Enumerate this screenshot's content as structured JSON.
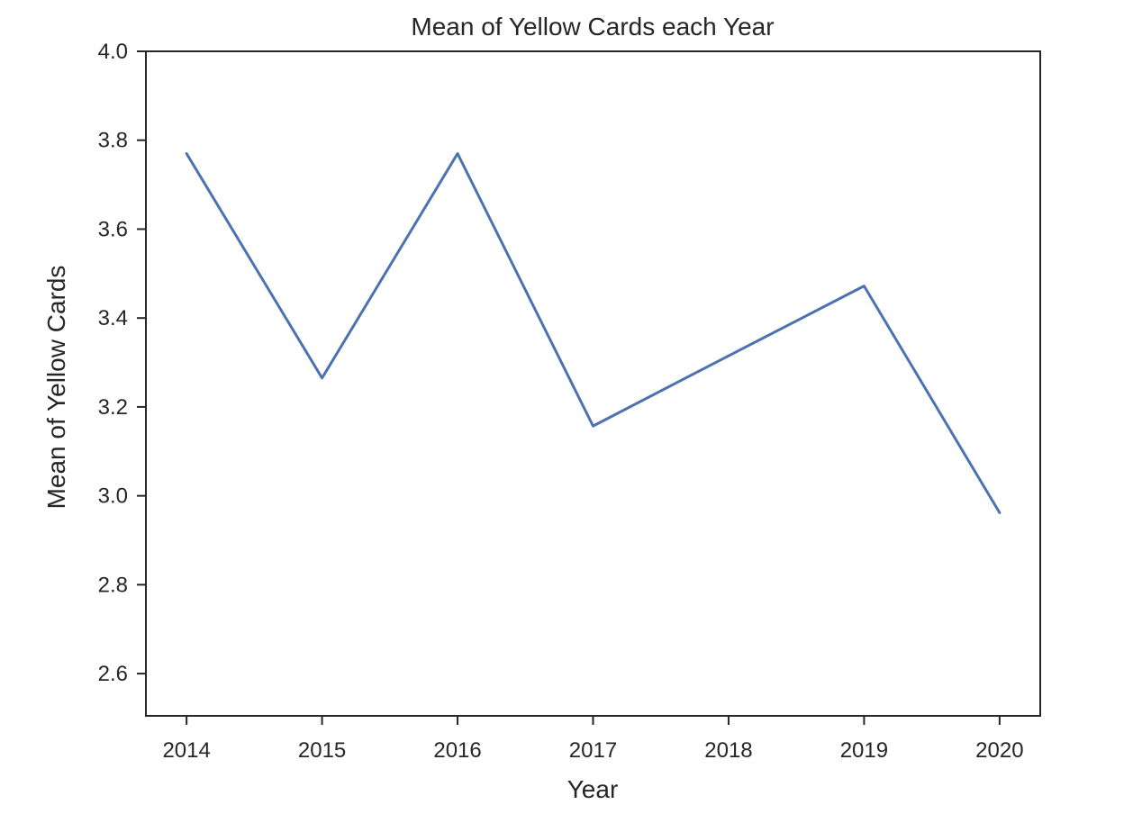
{
  "chart_data": {
    "type": "line",
    "title": "Mean of Yellow Cards each Year",
    "xlabel": "Year",
    "ylabel": "Mean of Yellow Cards",
    "x": [
      2014,
      2015,
      2016,
      2017,
      2018,
      2019,
      2020
    ],
    "series": [
      {
        "values": [
          3.77,
          3.265,
          3.77,
          3.157,
          3.315,
          3.472,
          2.962
        ]
      }
    ],
    "xticks": [
      "2014",
      "2015",
      "2016",
      "2017",
      "2018",
      "2019",
      "2020"
    ],
    "yticks": [
      "2.6",
      "2.8",
      "3.0",
      "3.2",
      "3.4",
      "3.6",
      "3.8",
      "4.0"
    ],
    "xlim": [
      2013.7,
      2020.3
    ],
    "ylim": [
      2.505,
      4.0
    ],
    "grid": false,
    "line_color": "#4c72b0",
    "axis_color": "#262626"
  }
}
